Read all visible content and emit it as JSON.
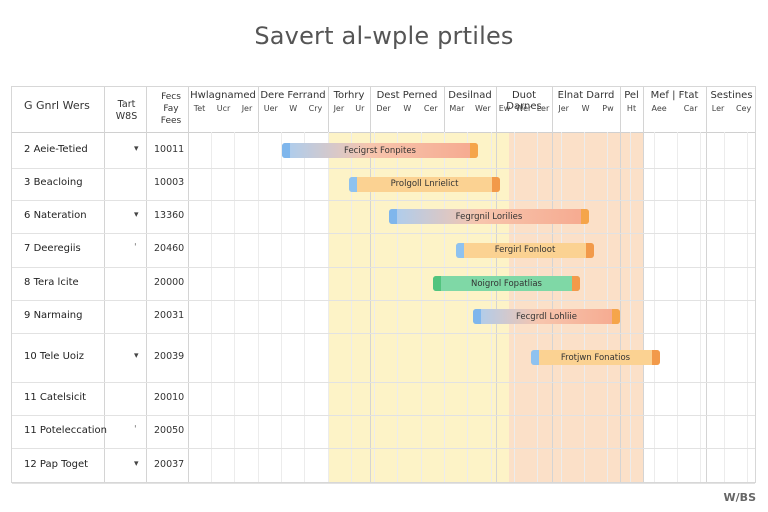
{
  "page": {
    "title": "Savert al-wple prtiles",
    "watermark": "W/BS"
  },
  "columns": {
    "name_header": "G Gnrl Wers",
    "mark_header": "Tart W8S",
    "value_header": "Fecs Fay Fees"
  },
  "periods": [
    {
      "label": "Hwlagnamed",
      "subs": [
        "Tet",
        "Ucr",
        "Jer"
      ]
    },
    {
      "label": "Dere Ferrand",
      "subs": [
        "Uer",
        "W",
        "Cry"
      ]
    },
    {
      "label": "Torhry",
      "subs": [
        "Jer",
        "Ur"
      ]
    },
    {
      "label": "Dest Perned",
      "subs": [
        "Der",
        "W",
        "Cer"
      ]
    },
    {
      "label": "Desilnad",
      "subs": [
        "Mar",
        "Wer"
      ]
    },
    {
      "label": "Duot Darnes",
      "subs": [
        "Ew",
        "Wer",
        "Ler"
      ]
    },
    {
      "label": "Elnat Darrd",
      "subs": [
        "Jer",
        "W",
        "Pw"
      ]
    },
    {
      "label": "Pel",
      "subs": [
        "Ht"
      ]
    },
    {
      "label": "Mef | Ftat",
      "subs": [
        "Aee",
        "Car"
      ]
    },
    {
      "label": "Sestines",
      "subs": [
        "Ler",
        "Cey"
      ]
    }
  ],
  "tasks": [
    {
      "num": "2",
      "name": "Aeie-Tetied",
      "mark": "▾",
      "value": "10011",
      "bar": {
        "start": 0.0,
        "end": 0.44,
        "label": "Fecigrst Fonpites",
        "color": "orange"
      }
    },
    {
      "num": "3",
      "name": "Beacloing",
      "mark": "",
      "value": "10003",
      "bar": {
        "start": 0.15,
        "end": 0.49,
        "label": "Prolgoll Lnrielict",
        "color": "yellow"
      }
    },
    {
      "num": "6",
      "name": "Nateration",
      "mark": "▾",
      "value": "13360",
      "bar": {
        "start": 0.24,
        "end": 0.69,
        "label": "Fegrgnil Lorilies",
        "color": "orange"
      }
    },
    {
      "num": "7",
      "name": "Deeregiis",
      "mark": "ˈ",
      "value": "20460",
      "bar": {
        "start": 0.39,
        "end": 0.7,
        "label": "Fergirl Fonloot",
        "color": "yellow"
      }
    },
    {
      "num": "8",
      "name": "Tera lcite",
      "mark": "",
      "value": "20000",
      "bar": {
        "start": 0.34,
        "end": 0.67,
        "label": "Noigrol Fopatlias",
        "color": "green"
      }
    },
    {
      "num": "9",
      "name": "Narmaing",
      "mark": "",
      "value": "20031",
      "bar": {
        "start": 0.43,
        "end": 0.76,
        "label": "Fecgrdl Lohliie",
        "color": "orange"
      }
    },
    {
      "num": "10",
      "name": "Tele Uoiz",
      "mark": "▾",
      "value": "20039",
      "bar": {
        "start": 0.56,
        "end": 0.85,
        "label": "Frotjwn Fonatios",
        "color": "yellow"
      }
    },
    {
      "num": "11",
      "name": "Catelsicit",
      "mark": "",
      "value": "20010",
      "bar": null
    },
    {
      "num": "11",
      "name": "Poteleccation",
      "mark": "ˈ",
      "value": "20050",
      "bar": null
    },
    {
      "num": "12",
      "name": "Pap Toget",
      "mark": "▾",
      "value": "20037",
      "bar": null
    }
  ]
}
